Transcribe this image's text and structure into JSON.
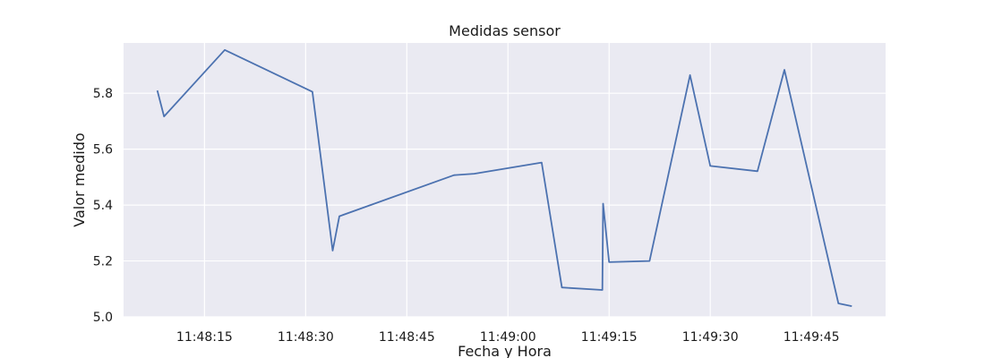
{
  "chart_data": {
    "type": "line",
    "title": "Medidas sensor",
    "xlabel": "Fecha y Hora",
    "ylabel": "Valor medido",
    "x_ticks": [
      "11:48:15",
      "11:48:30",
      "11:48:45",
      "11:49:00",
      "11:49:15",
      "11:49:30",
      "11:49:45"
    ],
    "y_ticks": [
      "5.0",
      "5.2",
      "5.4",
      "5.6",
      "5.8"
    ],
    "xlim": [
      "11:48:03",
      "11:49:56"
    ],
    "ylim": [
      5.0,
      5.98
    ],
    "grid": true,
    "colors": {
      "background": "#eaeaf2",
      "grid": "#ffffff",
      "line": "#4c72b0"
    },
    "series": [
      {
        "x": [
          "11:48:08",
          "11:48:09",
          "11:48:18",
          "11:48:31",
          "11:48:34",
          "11:48:35",
          "11:48:52",
          "11:48:55",
          "11:49:05",
          "11:49:08",
          "11:49:14",
          "11:49:14.1",
          "11:49:15",
          "11:49:21",
          "11:49:27",
          "11:49:30",
          "11:49:37",
          "11:49:41",
          "11:49:49",
          "11:49:51"
        ],
        "y": [
          5.81,
          5.717,
          5.955,
          5.805,
          5.237,
          5.36,
          5.507,
          5.512,
          5.552,
          5.105,
          5.096,
          5.405,
          5.196,
          5.2,
          5.865,
          5.54,
          5.521,
          5.884,
          5.048,
          5.038
        ]
      }
    ]
  }
}
